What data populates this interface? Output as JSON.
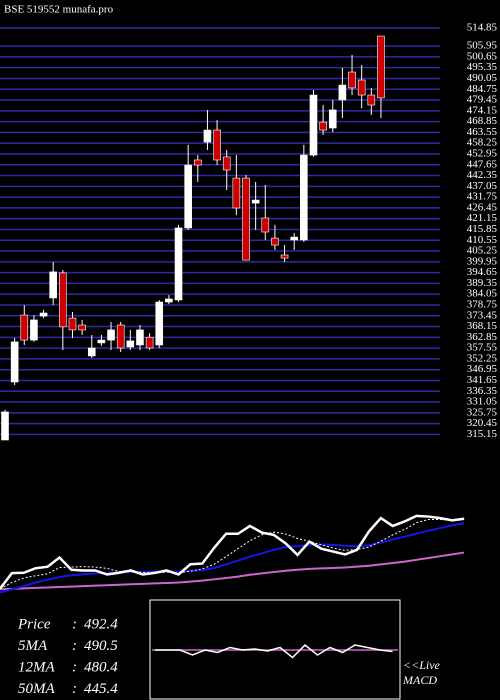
{
  "chart_data": {
    "type": "candlestick",
    "title": "BSE 519552 munafa.pro",
    "ylim": [
      312.4,
      514.85
    ],
    "yticks": [
      514.85,
      505.95,
      500.65,
      495.35,
      490.05,
      484.75,
      479.45,
      474.15,
      468.85,
      463.55,
      458.25,
      452.95,
      447.65,
      442.35,
      437.05,
      431.75,
      426.45,
      421.15,
      415.85,
      410.55,
      405.25,
      399.95,
      394.65,
      389.35,
      384.05,
      378.75,
      373.45,
      368.15,
      362.85,
      357.55,
      352.25,
      346.95,
      341.65,
      336.35,
      331.05,
      325.75,
      320.45,
      315.15
    ],
    "grid": true,
    "grid_color": "#2b2ba8",
    "up_color": "#ffffff",
    "down_color": "#cc0000",
    "candles": {
      "open": [
        312.4,
        340.9,
        373.8,
        361.5,
        373.3,
        382.2,
        394.5,
        372.3,
        368.9,
        353.7,
        360.1,
        361.5,
        368.9,
        358.1,
        359.1,
        362.9,
        359.1,
        380.2,
        381.2,
        416.6,
        450.0,
        458.8,
        464.7,
        451.5,
        441.1,
        441.1,
        428.8,
        421.5,
        411.6,
        403.3,
        410.7,
        410.7,
        452.4,
        468.6,
        465.7,
        479.5,
        493.2,
        489.3,
        481.9,
        510.9
      ],
      "high": [
        327.2,
        362.5,
        378.7,
        373.8,
        376.3,
        399.9,
        395.9,
        375.3,
        371.4,
        364.0,
        364.0,
        370.4,
        370.4,
        366.5,
        368.9,
        364.9,
        381.2,
        383.6,
        418.1,
        457.4,
        452.4,
        474.6,
        469.6,
        454.9,
        452.4,
        442.6,
        439.2,
        437.7,
        418.1,
        408.2,
        414.1,
        457.4,
        484.4,
        477.0,
        479.5,
        495.2,
        501.6,
        496.7,
        485.4,
        510.9
      ],
      "low": [
        312.4,
        339.4,
        359.1,
        360.6,
        372.3,
        378.7,
        356.6,
        362.5,
        364.0,
        352.7,
        358.6,
        356.6,
        355.6,
        356.6,
        356.6,
        356.6,
        357.6,
        379.2,
        380.2,
        415.6,
        439.2,
        454.9,
        447.5,
        435.2,
        422.9,
        400.8,
        415.6,
        410.7,
        405.8,
        399.9,
        405.8,
        409.7,
        451.5,
        462.3,
        463.7,
        470.6,
        481.9,
        475.5,
        472.1,
        470.6
      ],
      "close": [
        326.2,
        360.6,
        361.5,
        371.4,
        374.8,
        395.0,
        368.0,
        366.5,
        366.5,
        357.6,
        361.5,
        366.5,
        357.6,
        361.1,
        366.5,
        357.6,
        380.2,
        381.7,
        416.6,
        447.5,
        447.5,
        464.7,
        450.0,
        445.1,
        426.4,
        400.8,
        430.3,
        414.6,
        408.2,
        401.8,
        412.1,
        452.4,
        481.9,
        464.7,
        474.6,
        486.8,
        485.4,
        481.9,
        477.0,
        480.5
      ]
    },
    "lower_ylim": [
      312.4,
      510.9
    ],
    "price_color": "#ffffff",
    "ma_series": [
      {
        "name": "5MA",
        "color": "#ffffff",
        "dashed": true,
        "values": [
          326,
          340,
          350,
          355,
          359,
          373,
          374,
          375,
          374,
          371,
          364,
          364,
          362,
          361,
          363,
          361,
          365,
          370,
          380,
          397,
          415,
          432,
          445,
          451,
          447,
          437,
          431,
          423,
          416,
          411,
          413,
          418,
          431,
          445,
          457,
          472,
          479,
          479,
          477,
          482
        ]
      },
      {
        "name": "12MA",
        "color": "#1515e8",
        "dashed": false,
        "values": [
          318,
          325,
          332,
          340,
          346,
          352,
          356,
          358,
          360,
          361,
          362,
          363,
          363,
          364,
          364,
          364,
          365,
          367,
          372,
          380,
          388,
          397,
          404,
          412,
          418,
          420,
          423,
          424,
          423,
          421,
          420,
          422,
          428,
          435,
          441,
          448,
          454,
          460,
          466,
          471
        ]
      },
      {
        "name": "50MA",
        "color": "#cc66cc",
        "dashed": false,
        "values": [
          325,
          326,
          327,
          328,
          329,
          330,
          331,
          332,
          333,
          334,
          335,
          336,
          337,
          338,
          339,
          340,
          342,
          344,
          347,
          350,
          353,
          357,
          360,
          363,
          366,
          368,
          370,
          371,
          372,
          373,
          375,
          377,
          380,
          383,
          386,
          390,
          394,
          398,
          402,
          406
        ]
      }
    ],
    "info": [
      {
        "label": "Price",
        "separator": ":",
        "value": 492.4
      },
      {
        "label": "5MA",
        "separator": ":",
        "value": 490.5
      },
      {
        "label": "12MA",
        "separator": ":",
        "value": 480.4
      },
      {
        "label": "50MA",
        "separator": ":",
        "value": 445.4
      }
    ],
    "macd": {
      "label_lines": [
        "<<Live",
        "MACD"
      ],
      "ylim": [
        -1,
        1
      ],
      "zero_color": "#cc66cc",
      "values": [
        0,
        0,
        0,
        -0.1,
        0,
        -0.05,
        0.05,
        0,
        0.02,
        -0.02,
        0.05,
        -0.15,
        0.1,
        -0.1,
        0.05,
        -0.05,
        0.1,
        0.05,
        0,
        -0.03
      ]
    }
  }
}
